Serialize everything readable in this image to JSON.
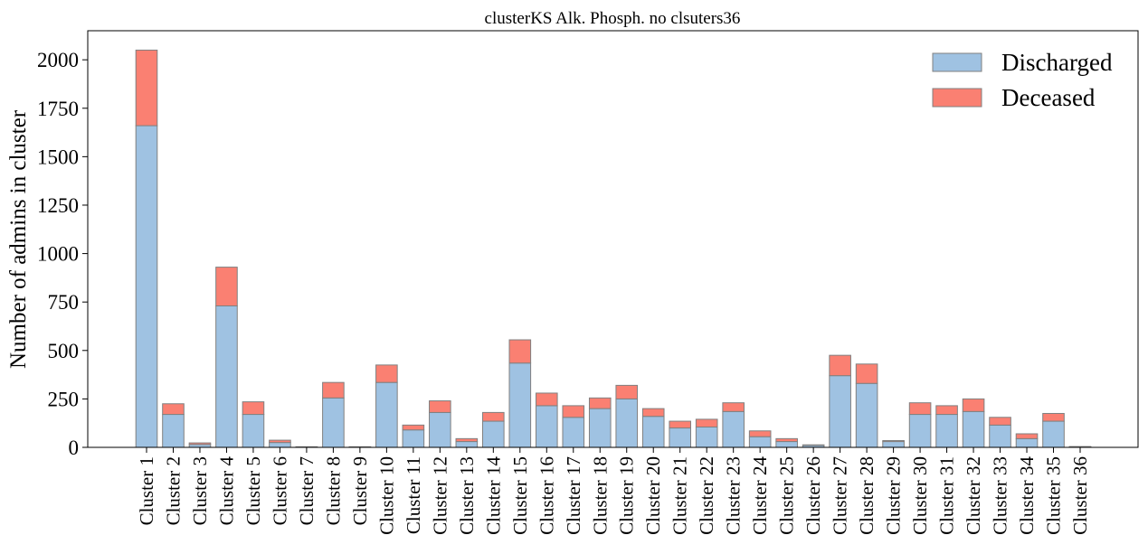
{
  "chart_data": {
    "type": "bar",
    "stacked": true,
    "title": "clusterKS Alk. Phosph. no clsuters36",
    "xlabel": "",
    "ylabel": "Number of admins in cluster",
    "ylim": [
      0,
      2150
    ],
    "yticks": [
      0,
      250,
      500,
      750,
      1000,
      1250,
      1500,
      1750,
      2000
    ],
    "grid": false,
    "legend_position": "top-right",
    "categories": [
      "Cluster 1",
      "Cluster 2",
      "Cluster 3",
      "Cluster 4",
      "Cluster 5",
      "Cluster 6",
      "Cluster 7",
      "Cluster 8",
      "Cluster 9",
      "Cluster 10",
      "Cluster 11",
      "Cluster 12",
      "Cluster 13",
      "Cluster 14",
      "Cluster 15",
      "Cluster 16",
      "Cluster 17",
      "Cluster 18",
      "Cluster 19",
      "Cluster 20",
      "Cluster 21",
      "Cluster 22",
      "Cluster 23",
      "Cluster 24",
      "Cluster 25",
      "Cluster 26",
      "Cluster 27",
      "Cluster 28",
      "Cluster 29",
      "Cluster 30",
      "Cluster 31",
      "Cluster 32",
      "Cluster 33",
      "Cluster 34",
      "Cluster 35",
      "Cluster 36"
    ],
    "series": [
      {
        "name": "Discharged",
        "color": "#9fc2e2",
        "values": [
          1660,
          170,
          15,
          730,
          170,
          25,
          2,
          255,
          2,
          335,
          90,
          180,
          30,
          135,
          435,
          215,
          155,
          200,
          250,
          160,
          100,
          105,
          185,
          55,
          30,
          10,
          370,
          330,
          30,
          170,
          170,
          185,
          115,
          45,
          135,
          3
        ]
      },
      {
        "name": "Deceased",
        "color": "#fa8072",
        "values": [
          390,
          55,
          8,
          200,
          65,
          12,
          1,
          80,
          1,
          90,
          25,
          60,
          15,
          45,
          120,
          65,
          60,
          55,
          70,
          40,
          35,
          40,
          45,
          30,
          15,
          3,
          105,
          100,
          5,
          60,
          45,
          65,
          40,
          25,
          40,
          1
        ]
      }
    ],
    "edge_color": "#808080"
  }
}
